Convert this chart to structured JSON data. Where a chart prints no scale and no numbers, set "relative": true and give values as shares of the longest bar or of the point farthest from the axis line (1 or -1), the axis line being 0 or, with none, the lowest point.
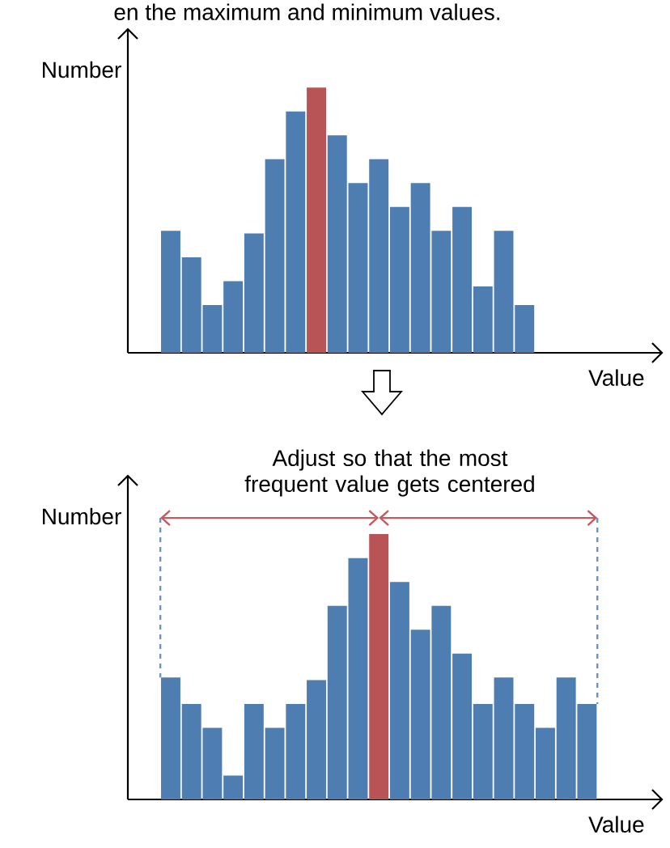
{
  "chart_data": [
    {
      "type": "bar",
      "title": "en the maximum and minimum values.",
      "xlabel": "Value",
      "ylabel": "Number",
      "relative": true,
      "categories": [
        null,
        null,
        null,
        null,
        null,
        null,
        null,
        null,
        null,
        null,
        null,
        null,
        null,
        null,
        null,
        null,
        null,
        null
      ],
      "values": [
        0.46,
        0.36,
        0.18,
        0.27,
        0.45,
        0.73,
        0.91,
        1,
        0.82,
        0.64,
        0.73,
        0.55,
        0.64,
        0.46,
        0.55,
        0.25,
        0.46,
        0.18
      ],
      "colors": [
        "#4e7db1",
        "#4e7db1",
        "#4e7db1",
        "#4e7db1",
        "#4e7db1",
        "#4e7db1",
        "#4e7db1",
        "#b85356",
        "#4e7db1",
        "#4e7db1",
        "#4e7db1",
        "#4e7db1",
        "#4e7db1",
        "#4e7db1",
        "#4e7db1",
        "#4e7db1",
        "#4e7db1",
        "#4e7db1"
      ]
    },
    {
      "type": "bar",
      "xlabel": "Value",
      "ylabel": "Number",
      "relative": true,
      "annotations": [
        "Adjust so that the most frequent value gets centered"
      ],
      "categories": [
        null,
        null,
        null,
        null,
        null,
        null,
        null,
        null,
        null,
        null,
        null,
        null,
        null,
        null,
        null,
        null,
        null,
        null,
        null,
        null,
        null
      ],
      "values": [
        0.46,
        0.36,
        0.27,
        0.09,
        0.36,
        0.27,
        0.36,
        0.45,
        0.73,
        0.91,
        1,
        0.82,
        0.64,
        0.73,
        0.55,
        0.36,
        0.46,
        0.36,
        0.27,
        0.46,
        0.36
      ],
      "colors": [
        "#4e7db1",
        "#4e7db1",
        "#4e7db1",
        "#4e7db1",
        "#4e7db1",
        "#4e7db1",
        "#4e7db1",
        "#4e7db1",
        "#4e7db1",
        "#4e7db1",
        "#b85356",
        "#4e7db1",
        "#4e7db1",
        "#4e7db1",
        "#4e7db1",
        "#4e7db1",
        "#4e7db1",
        "#4e7db1",
        "#4e7db1",
        "#4e7db1",
        "#4e7db1"
      ]
    }
  ]
}
